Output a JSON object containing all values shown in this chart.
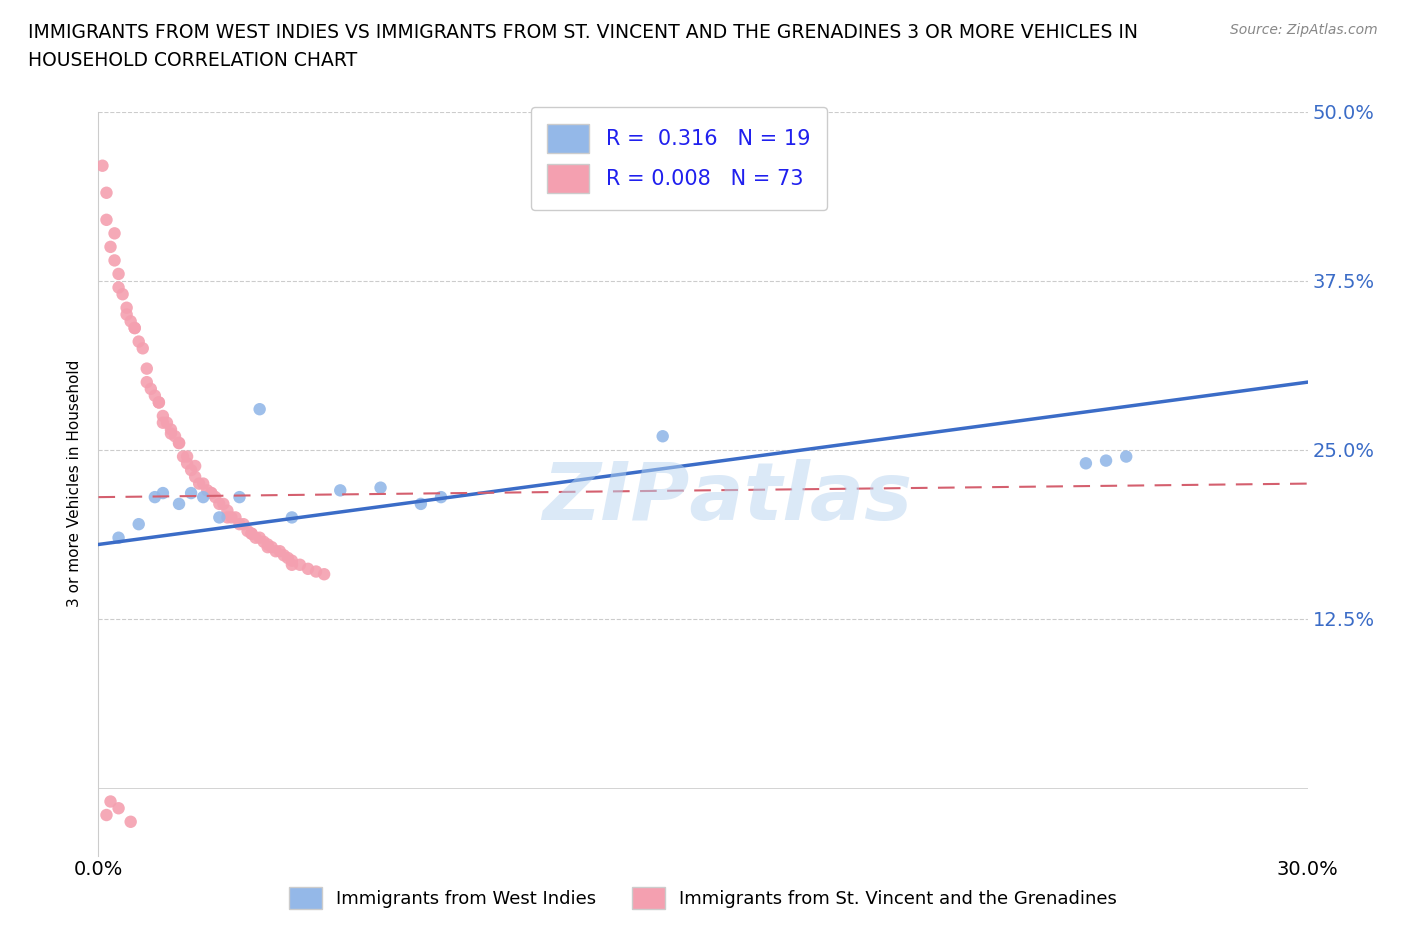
{
  "title_line1": "IMMIGRANTS FROM WEST INDIES VS IMMIGRANTS FROM ST. VINCENT AND THE GRENADINES 3 OR MORE VEHICLES IN",
  "title_line2": "HOUSEHOLD CORRELATION CHART",
  "source": "Source: ZipAtlas.com",
  "ylabel_label": "3 or more Vehicles in Household",
  "xlim": [
    0.0,
    0.3
  ],
  "ylim": [
    -0.05,
    0.5
  ],
  "series1_label": "Immigrants from West Indies",
  "series2_label": "Immigrants from St. Vincent and the Grenadines",
  "series1_color": "#94b8e8",
  "series2_color": "#f4a0b0",
  "series1_R": 0.316,
  "series1_N": 19,
  "series2_R": 0.008,
  "series2_N": 73,
  "series1_line_color": "#3b6cc7",
  "series2_line_color": "#d45f6e",
  "background_color": "#ffffff",
  "series1_x": [
    0.005,
    0.01,
    0.014,
    0.016,
    0.02,
    0.023,
    0.026,
    0.03,
    0.035,
    0.04,
    0.048,
    0.06,
    0.07,
    0.08,
    0.085,
    0.14,
    0.245,
    0.25,
    0.255
  ],
  "series1_y": [
    0.185,
    0.195,
    0.215,
    0.218,
    0.21,
    0.218,
    0.215,
    0.2,
    0.215,
    0.28,
    0.2,
    0.22,
    0.222,
    0.21,
    0.215,
    0.26,
    0.24,
    0.242,
    0.245
  ],
  "series2_x": [
    0.001,
    0.002,
    0.003,
    0.004,
    0.005,
    0.006,
    0.007,
    0.008,
    0.009,
    0.01,
    0.011,
    0.012,
    0.013,
    0.014,
    0.015,
    0.016,
    0.017,
    0.018,
    0.019,
    0.02,
    0.021,
    0.022,
    0.023,
    0.024,
    0.025,
    0.026,
    0.027,
    0.028,
    0.029,
    0.03,
    0.031,
    0.032,
    0.033,
    0.034,
    0.035,
    0.036,
    0.037,
    0.038,
    0.039,
    0.04,
    0.041,
    0.042,
    0.043,
    0.044,
    0.045,
    0.046,
    0.047,
    0.048,
    0.05,
    0.052,
    0.054,
    0.056,
    0.002,
    0.004,
    0.005,
    0.007,
    0.009,
    0.012,
    0.015,
    0.016,
    0.018,
    0.02,
    0.022,
    0.024,
    0.028,
    0.032,
    0.038,
    0.042,
    0.048,
    0.002,
    0.003,
    0.005,
    0.008
  ],
  "series2_y": [
    0.46,
    0.42,
    0.4,
    0.39,
    0.38,
    0.365,
    0.355,
    0.345,
    0.34,
    0.33,
    0.325,
    0.3,
    0.295,
    0.29,
    0.285,
    0.275,
    0.27,
    0.265,
    0.26,
    0.255,
    0.245,
    0.24,
    0.235,
    0.23,
    0.225,
    0.225,
    0.22,
    0.218,
    0.215,
    0.21,
    0.21,
    0.205,
    0.2,
    0.2,
    0.195,
    0.195,
    0.19,
    0.188,
    0.185,
    0.185,
    0.182,
    0.18,
    0.178,
    0.175,
    0.175,
    0.172,
    0.17,
    0.168,
    0.165,
    0.162,
    0.16,
    0.158,
    0.44,
    0.41,
    0.37,
    0.35,
    0.34,
    0.31,
    0.285,
    0.27,
    0.262,
    0.255,
    0.245,
    0.238,
    0.218,
    0.2,
    0.188,
    0.178,
    0.165,
    -0.02,
    -0.01,
    -0.015,
    -0.025
  ]
}
